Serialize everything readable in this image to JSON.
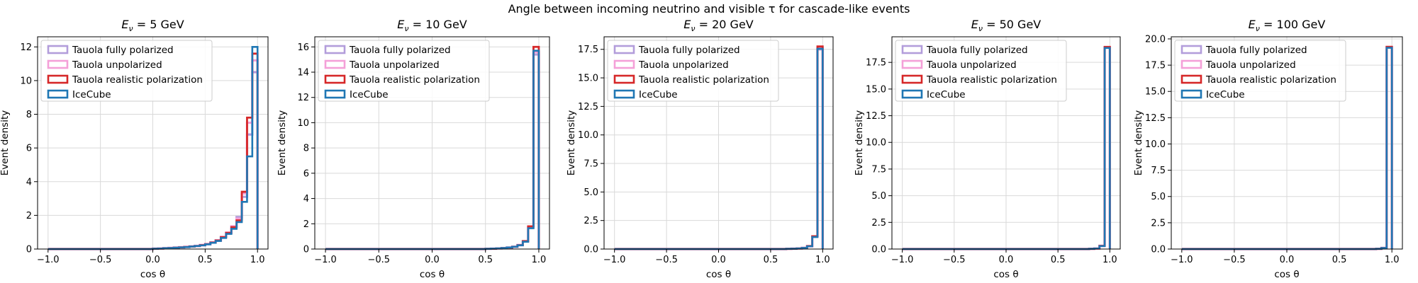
{
  "figure": {
    "title": "Angle between incoming neutrino and visible τ for cascade-like events"
  },
  "legend": [
    {
      "label": "Tauola fully polarized",
      "color": "#b39ddb"
    },
    {
      "label": "Tauola unpolarized",
      "color": "#f4a0d8"
    },
    {
      "label": "Tauola realistic polarization",
      "color": "#d62728"
    },
    {
      "label": "IceCube",
      "color": "#1f77b4"
    }
  ],
  "chart_data": [
    {
      "type": "histogram",
      "title_prefix": "E",
      "title_sub": "ν",
      "title_suffix": " = 5 GeV",
      "xlabel": "cos θ",
      "ylabel": "Event density",
      "xlim": [
        -1.1,
        1.1
      ],
      "ylim": [
        0,
        12.6
      ],
      "yticks": [
        0,
        2,
        4,
        6,
        8,
        10,
        12
      ],
      "ytick_labels": [
        "0",
        "2",
        "4",
        "6",
        "8",
        "10",
        "12"
      ],
      "xticks": [
        -1.0,
        -0.5,
        0.0,
        0.5,
        1.0
      ],
      "xtick_labels": [
        "−1.0",
        "−0.5",
        "0.0",
        "0.5",
        "1.0"
      ],
      "bins": {
        "start": -1.0,
        "step": 0.05
      },
      "series": [
        {
          "name": "Tauola fully polarized",
          "values": [
            0,
            0,
            0,
            0,
            0,
            0,
            0,
            0,
            0,
            0,
            0,
            0,
            0,
            0,
            0,
            0,
            0,
            0,
            0,
            0,
            0.02,
            0.03,
            0.05,
            0.06,
            0.08,
            0.1,
            0.12,
            0.15,
            0.18,
            0.22,
            0.28,
            0.38,
            0.5,
            0.7,
            0.95,
            1.3,
            1.9,
            3.1,
            6.8,
            10.5
          ]
        },
        {
          "name": "Tauola unpolarized",
          "values": [
            0,
            0,
            0,
            0,
            0,
            0,
            0,
            0,
            0,
            0,
            0,
            0,
            0,
            0,
            0,
            0,
            0,
            0,
            0,
            0,
            0.02,
            0.03,
            0.05,
            0.07,
            0.09,
            0.11,
            0.13,
            0.16,
            0.19,
            0.24,
            0.3,
            0.4,
            0.52,
            0.72,
            0.98,
            1.35,
            1.8,
            3.3,
            7.5,
            11.2
          ]
        },
        {
          "name": "Tauola realistic polarization",
          "values": [
            0,
            0,
            0,
            0,
            0,
            0,
            0,
            0,
            0,
            0,
            0,
            0,
            0,
            0,
            0,
            0,
            0,
            0,
            0,
            0,
            0.02,
            0.03,
            0.05,
            0.06,
            0.08,
            0.1,
            0.12,
            0.15,
            0.18,
            0.23,
            0.29,
            0.39,
            0.51,
            0.71,
            0.96,
            1.3,
            1.7,
            3.4,
            7.8,
            11.6
          ]
        },
        {
          "name": "IceCube",
          "values": [
            0,
            0,
            0,
            0,
            0,
            0,
            0,
            0,
            0,
            0,
            0,
            0,
            0,
            0,
            0,
            0,
            0,
            0,
            0,
            0,
            0.02,
            0.03,
            0.05,
            0.06,
            0.08,
            0.1,
            0.12,
            0.15,
            0.18,
            0.22,
            0.28,
            0.37,
            0.48,
            0.66,
            0.9,
            1.2,
            1.6,
            2.8,
            5.5,
            12.0
          ]
        }
      ]
    },
    {
      "type": "histogram",
      "title_prefix": "E",
      "title_sub": "ν",
      "title_suffix": " = 10 GeV",
      "xlabel": "cos θ",
      "ylabel": "Event density",
      "xlim": [
        -1.1,
        1.1
      ],
      "ylim": [
        0,
        16.8
      ],
      "yticks": [
        0,
        2,
        4,
        6,
        8,
        10,
        12,
        14,
        16
      ],
      "ytick_labels": [
        "0",
        "2",
        "4",
        "6",
        "8",
        "10",
        "12",
        "14",
        "16"
      ],
      "xticks": [
        -1.0,
        -0.5,
        0.0,
        0.5,
        1.0
      ],
      "xtick_labels": [
        "−1.0",
        "−0.5",
        "0.0",
        "0.5",
        "1.0"
      ],
      "bins": {
        "start": -1.0,
        "step": 0.05
      },
      "series": [
        {
          "name": "Tauola fully polarized",
          "values": [
            0,
            0,
            0,
            0,
            0,
            0,
            0,
            0,
            0,
            0,
            0,
            0,
            0,
            0,
            0,
            0,
            0,
            0,
            0,
            0,
            0,
            0,
            0,
            0,
            0,
            0,
            0,
            0,
            0,
            0,
            0.02,
            0.03,
            0.05,
            0.08,
            0.12,
            0.18,
            0.3,
            0.6,
            1.7,
            15.4
          ]
        },
        {
          "name": "Tauola unpolarized",
          "values": [
            0,
            0,
            0,
            0,
            0,
            0,
            0,
            0,
            0,
            0,
            0,
            0,
            0,
            0,
            0,
            0,
            0,
            0,
            0,
            0,
            0,
            0,
            0,
            0,
            0,
            0,
            0,
            0,
            0,
            0,
            0.02,
            0.03,
            0.05,
            0.08,
            0.12,
            0.18,
            0.32,
            0.62,
            1.75,
            15.6
          ]
        },
        {
          "name": "Tauola realistic polarization",
          "values": [
            0,
            0,
            0,
            0,
            0,
            0,
            0,
            0,
            0,
            0,
            0,
            0,
            0,
            0,
            0,
            0,
            0,
            0,
            0,
            0,
            0,
            0,
            0,
            0,
            0,
            0,
            0,
            0,
            0,
            0,
            0.02,
            0.03,
            0.05,
            0.08,
            0.12,
            0.18,
            0.31,
            0.63,
            1.8,
            16.0
          ]
        },
        {
          "name": "IceCube",
          "values": [
            0,
            0,
            0,
            0,
            0,
            0,
            0,
            0,
            0,
            0,
            0,
            0,
            0,
            0,
            0,
            0,
            0,
            0,
            0,
            0,
            0,
            0,
            0,
            0,
            0,
            0,
            0,
            0,
            0,
            0,
            0.02,
            0.03,
            0.05,
            0.08,
            0.12,
            0.18,
            0.3,
            0.58,
            1.65,
            15.7
          ]
        }
      ]
    },
    {
      "type": "histogram",
      "title_prefix": "E",
      "title_sub": "ν",
      "title_suffix": " = 20 GeV",
      "xlabel": "cos θ",
      "ylabel": "Event density",
      "xlim": [
        -1.1,
        1.1
      ],
      "ylim": [
        0,
        18.6
      ],
      "yticks": [
        0,
        2.5,
        5,
        7.5,
        10,
        12.5,
        15,
        17.5
      ],
      "ytick_labels": [
        "0.0",
        "2.5",
        "5.0",
        "7.5",
        "10.0",
        "12.5",
        "15.0",
        "17.5"
      ],
      "xticks": [
        -1.0,
        -0.5,
        0.0,
        0.5,
        1.0
      ],
      "xtick_labels": [
        "−1.0",
        "−0.5",
        "0.0",
        "0.5",
        "1.0"
      ],
      "bins": {
        "start": -1.0,
        "step": 0.05
      },
      "series": [
        {
          "name": "Tauola fully polarized",
          "values": [
            0,
            0,
            0,
            0,
            0,
            0,
            0,
            0,
            0,
            0,
            0,
            0,
            0,
            0,
            0,
            0,
            0,
            0,
            0,
            0,
            0,
            0,
            0,
            0,
            0,
            0,
            0,
            0,
            0,
            0,
            0,
            0,
            0,
            0.02,
            0.03,
            0.05,
            0.1,
            0.25,
            1.1,
            17.5
          ]
        },
        {
          "name": "Tauola unpolarized",
          "values": [
            0,
            0,
            0,
            0,
            0,
            0,
            0,
            0,
            0,
            0,
            0,
            0,
            0,
            0,
            0,
            0,
            0,
            0,
            0,
            0,
            0,
            0,
            0,
            0,
            0,
            0,
            0,
            0,
            0,
            0,
            0,
            0,
            0,
            0.02,
            0.03,
            0.05,
            0.1,
            0.25,
            1.1,
            17.6
          ]
        },
        {
          "name": "Tauola realistic polarization",
          "values": [
            0,
            0,
            0,
            0,
            0,
            0,
            0,
            0,
            0,
            0,
            0,
            0,
            0,
            0,
            0,
            0,
            0,
            0,
            0,
            0,
            0,
            0,
            0,
            0,
            0,
            0,
            0,
            0,
            0,
            0,
            0,
            0,
            0,
            0.02,
            0.03,
            0.05,
            0.1,
            0.26,
            1.12,
            17.75
          ]
        },
        {
          "name": "IceCube",
          "values": [
            0,
            0,
            0,
            0,
            0,
            0,
            0,
            0,
            0,
            0,
            0,
            0,
            0,
            0,
            0,
            0,
            0,
            0,
            0,
            0,
            0,
            0,
            0,
            0,
            0,
            0,
            0,
            0,
            0,
            0,
            0,
            0,
            0,
            0.02,
            0.03,
            0.05,
            0.1,
            0.24,
            1.05,
            17.55
          ]
        }
      ]
    },
    {
      "type": "histogram",
      "title_prefix": "E",
      "title_sub": "ν",
      "title_suffix": " = 50 GeV",
      "xlabel": "cos θ",
      "ylabel": "Event density",
      "xlim": [
        -1.1,
        1.1
      ],
      "ylim": [
        0,
        19.9
      ],
      "yticks": [
        0,
        2.5,
        5,
        7.5,
        10,
        12.5,
        15,
        17.5
      ],
      "ytick_labels": [
        "0.0",
        "2.5",
        "5.0",
        "7.5",
        "10.0",
        "12.5",
        "15.0",
        "17.5"
      ],
      "xticks": [
        -1.0,
        -0.5,
        0.0,
        0.5,
        1.0
      ],
      "xtick_labels": [
        "−1.0",
        "−0.5",
        "0.0",
        "0.5",
        "1.0"
      ],
      "bins": {
        "start": -1.0,
        "step": 0.05
      },
      "series": [
        {
          "name": "Tauola fully polarized",
          "values": [
            0,
            0,
            0,
            0,
            0,
            0,
            0,
            0,
            0,
            0,
            0,
            0,
            0,
            0,
            0,
            0,
            0,
            0,
            0,
            0,
            0,
            0,
            0,
            0,
            0,
            0,
            0,
            0,
            0,
            0,
            0,
            0,
            0,
            0,
            0,
            0,
            0.02,
            0.05,
            0.3,
            18.9
          ]
        },
        {
          "name": "Tauola unpolarized",
          "values": [
            0,
            0,
            0,
            0,
            0,
            0,
            0,
            0,
            0,
            0,
            0,
            0,
            0,
            0,
            0,
            0,
            0,
            0,
            0,
            0,
            0,
            0,
            0,
            0,
            0,
            0,
            0,
            0,
            0,
            0,
            0,
            0,
            0,
            0,
            0,
            0,
            0.02,
            0.05,
            0.3,
            18.9
          ]
        },
        {
          "name": "Tauola realistic polarization",
          "values": [
            0,
            0,
            0,
            0,
            0,
            0,
            0,
            0,
            0,
            0,
            0,
            0,
            0,
            0,
            0,
            0,
            0,
            0,
            0,
            0,
            0,
            0,
            0,
            0,
            0,
            0,
            0,
            0,
            0,
            0,
            0,
            0,
            0,
            0,
            0,
            0,
            0.02,
            0.05,
            0.3,
            18.95
          ]
        },
        {
          "name": "IceCube",
          "values": [
            0,
            0,
            0,
            0,
            0,
            0,
            0,
            0,
            0,
            0,
            0,
            0,
            0,
            0,
            0,
            0,
            0,
            0,
            0,
            0,
            0,
            0,
            0,
            0,
            0,
            0,
            0,
            0,
            0,
            0,
            0,
            0,
            0,
            0,
            0,
            0,
            0.02,
            0.05,
            0.28,
            18.85
          ]
        }
      ]
    },
    {
      "type": "histogram",
      "title_prefix": "E",
      "title_sub": "ν",
      "title_suffix": " = 100 GeV",
      "xlabel": "cos θ",
      "ylabel": "Event density",
      "xlim": [
        -1.1,
        1.1
      ],
      "ylim": [
        0,
        20.2
      ],
      "yticks": [
        0,
        2.5,
        5,
        7.5,
        10,
        12.5,
        15,
        17.5,
        20
      ],
      "ytick_labels": [
        "0.0",
        "2.5",
        "5.0",
        "7.5",
        "10.0",
        "12.5",
        "15.0",
        "17.5",
        "20.0"
      ],
      "xticks": [
        -1.0,
        -0.5,
        0.0,
        0.5,
        1.0
      ],
      "xtick_labels": [
        "−1.0",
        "−0.5",
        "0.0",
        "0.5",
        "1.0"
      ],
      "bins": {
        "start": -1.0,
        "step": 0.05
      },
      "series": [
        {
          "name": "Tauola fully polarized",
          "values": [
            0,
            0,
            0,
            0,
            0,
            0,
            0,
            0,
            0,
            0,
            0,
            0,
            0,
            0,
            0,
            0,
            0,
            0,
            0,
            0,
            0,
            0,
            0,
            0,
            0,
            0,
            0,
            0,
            0,
            0,
            0,
            0,
            0,
            0,
            0,
            0,
            0,
            0.02,
            0.1,
            19.2
          ]
        },
        {
          "name": "Tauola unpolarized",
          "values": [
            0,
            0,
            0,
            0,
            0,
            0,
            0,
            0,
            0,
            0,
            0,
            0,
            0,
            0,
            0,
            0,
            0,
            0,
            0,
            0,
            0,
            0,
            0,
            0,
            0,
            0,
            0,
            0,
            0,
            0,
            0,
            0,
            0,
            0,
            0,
            0,
            0,
            0.02,
            0.1,
            19.2
          ]
        },
        {
          "name": "Tauola realistic polarization",
          "values": [
            0,
            0,
            0,
            0,
            0,
            0,
            0,
            0,
            0,
            0,
            0,
            0,
            0,
            0,
            0,
            0,
            0,
            0,
            0,
            0,
            0,
            0,
            0,
            0,
            0,
            0,
            0,
            0,
            0,
            0,
            0,
            0,
            0,
            0,
            0,
            0,
            0,
            0.02,
            0.1,
            19.25
          ]
        },
        {
          "name": "IceCube",
          "values": [
            0,
            0,
            0,
            0,
            0,
            0,
            0,
            0,
            0,
            0,
            0,
            0,
            0,
            0,
            0,
            0,
            0,
            0,
            0,
            0,
            0,
            0,
            0,
            0,
            0,
            0,
            0,
            0,
            0,
            0,
            0,
            0,
            0,
            0,
            0,
            0,
            0,
            0.02,
            0.1,
            19.15
          ]
        }
      ]
    }
  ]
}
